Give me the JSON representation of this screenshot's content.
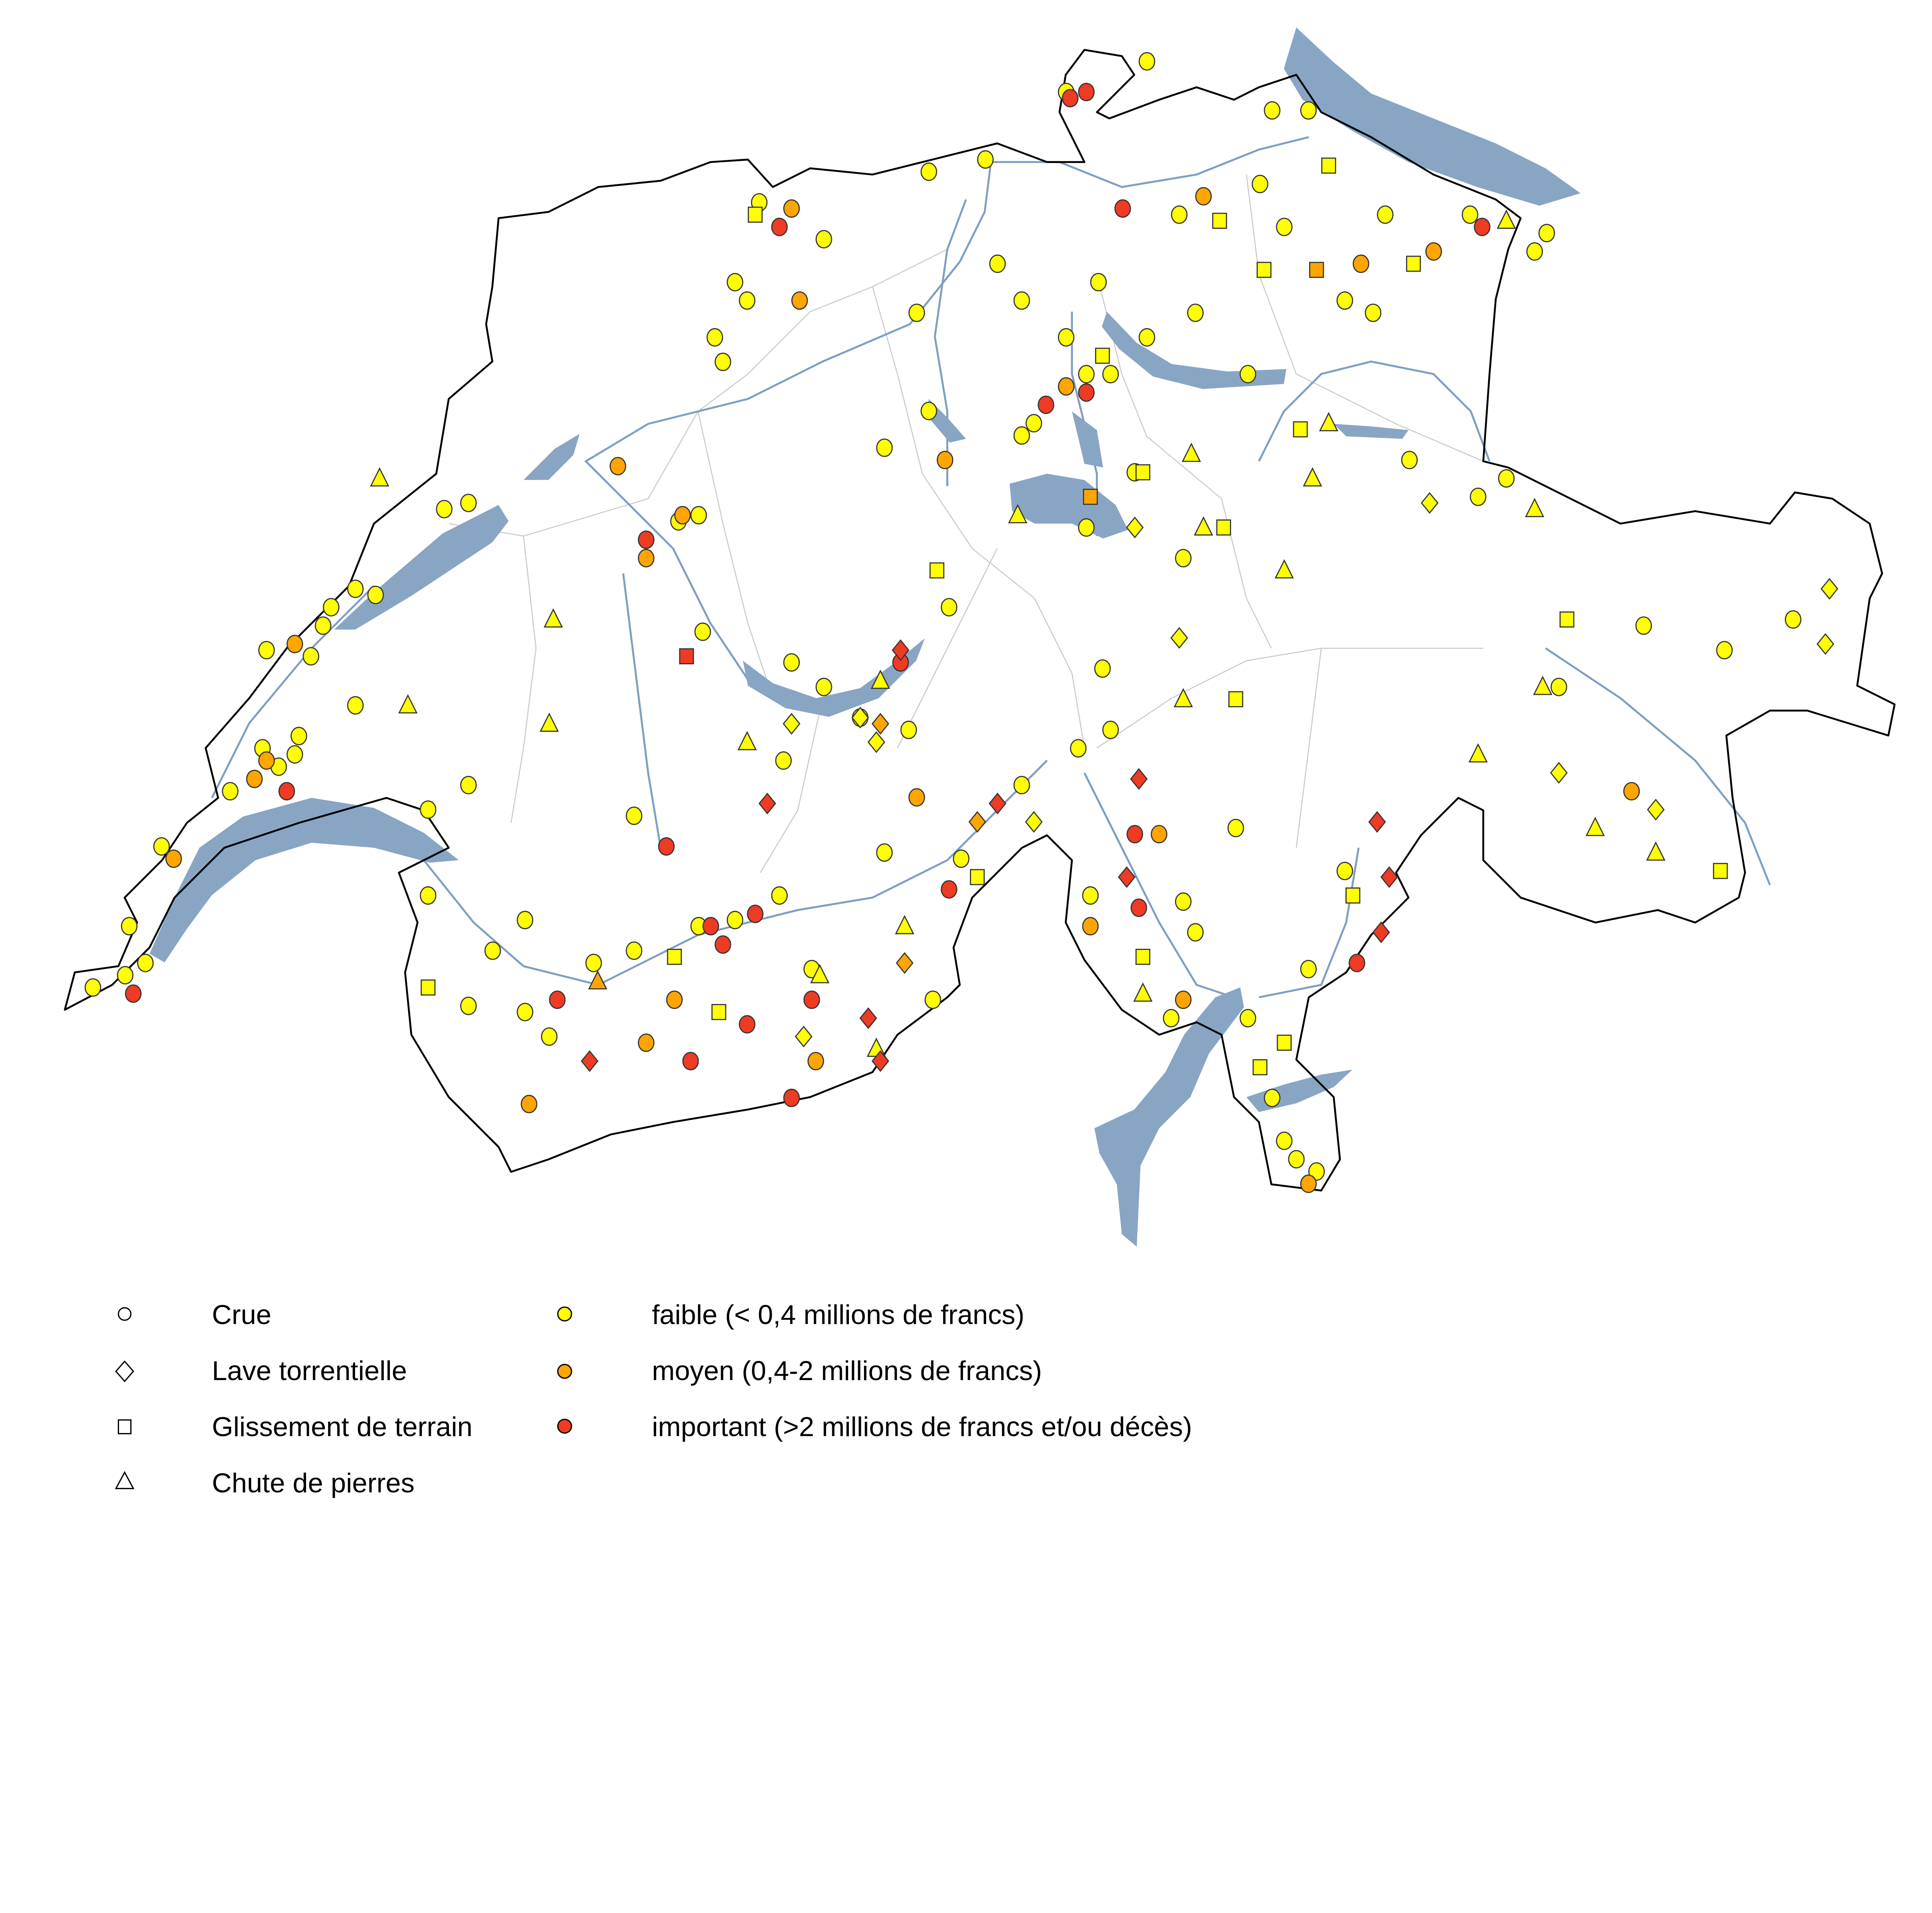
{
  "colors": {
    "faible": "#ffff00",
    "moyen": "#ffa500",
    "important": "#ee3b24",
    "lake": "#88a5c4",
    "river": "#7f9fc2",
    "border": "#000000",
    "canton": "#bbbbbb"
  },
  "legend": {
    "types": [
      {
        "key": "c",
        "icon": "circle-icon",
        "label": "Crue"
      },
      {
        "key": "d",
        "icon": "diamond-icon",
        "label": "Lave torrentielle"
      },
      {
        "key": "s",
        "icon": "square-icon",
        "label": "Glissement de terrain"
      },
      {
        "key": "t",
        "icon": "triangle-icon",
        "label": "Chute de pierres"
      }
    ],
    "severity": [
      {
        "key": "f",
        "label": "faible (< 0,4 millions de francs)"
      },
      {
        "key": "m",
        "label": "moyen (0,4-2  millions de francs)"
      },
      {
        "key": "i",
        "label": "important (>2 millions de francs et/ou décès)"
      }
    ]
  },
  "chart_data": {
    "type": "scatter",
    "coordinate_system": "lon/lat (approx.)",
    "point_fields": [
      "lon",
      "lat",
      "type",
      "severity"
    ],
    "points": [
      [
        6.03,
        46.24,
        "c",
        "f"
      ],
      [
        6.11,
        46.26,
        "c",
        "f"
      ],
      [
        6.16,
        46.28,
        "c",
        "f"
      ],
      [
        6.12,
        46.34,
        "c",
        "f"
      ],
      [
        6.2,
        46.47,
        "c",
        "f"
      ],
      [
        6.37,
        46.56,
        "c",
        "f"
      ],
      [
        6.45,
        46.63,
        "c",
        "f"
      ],
      [
        6.49,
        46.6,
        "c",
        "f"
      ],
      [
        6.54,
        46.65,
        "c",
        "f"
      ],
      [
        6.53,
        46.62,
        "c",
        "f"
      ],
      [
        6.57,
        46.78,
        "c",
        "f"
      ],
      [
        6.6,
        46.83,
        "c",
        "f"
      ],
      [
        6.62,
        46.86,
        "c",
        "f"
      ],
      [
        6.46,
        46.79,
        "c",
        "f"
      ],
      [
        6.73,
        46.88,
        "c",
        "f"
      ],
      [
        6.9,
        47.02,
        "c",
        "f"
      ],
      [
        6.96,
        47.03,
        "c",
        "f"
      ],
      [
        6.86,
        46.53,
        "c",
        "f"
      ],
      [
        6.96,
        46.57,
        "c",
        "f"
      ],
      [
        6.68,
        46.7,
        "c",
        "f"
      ],
      [
        6.86,
        46.39,
        "c",
        "f"
      ],
      [
        6.96,
        46.21,
        "c",
        "f"
      ],
      [
        7.1,
        46.35,
        "c",
        "f"
      ],
      [
        7.16,
        46.16,
        "c",
        "f"
      ],
      [
        7.27,
        46.28,
        "c",
        "f"
      ],
      [
        7.37,
        46.3,
        "c",
        "f"
      ],
      [
        7.53,
        46.34,
        "c",
        "f"
      ],
      [
        7.62,
        46.35,
        "c",
        "f"
      ],
      [
        7.73,
        46.39,
        "c",
        "f"
      ],
      [
        7.81,
        46.27,
        "c",
        "f"
      ],
      [
        7.99,
        46.46,
        "c",
        "f"
      ],
      [
        8.11,
        46.22,
        "c",
        "f"
      ],
      [
        8.18,
        46.45,
        "c",
        "f"
      ],
      [
        8.33,
        46.57,
        "c",
        "f"
      ],
      [
        8.47,
        46.63,
        "c",
        "f"
      ],
      [
        8.55,
        46.66,
        "c",
        "f"
      ],
      [
        8.53,
        46.76,
        "c",
        "f"
      ],
      [
        8.73,
        46.94,
        "c",
        "f"
      ],
      [
        8.61,
        47.08,
        "c",
        "f"
      ],
      [
        8.49,
        46.99,
        "c",
        "f"
      ],
      [
        8.15,
        46.86,
        "c",
        "f"
      ],
      [
        7.76,
        46.77,
        "c",
        "f"
      ],
      [
        7.84,
        46.73,
        "c",
        "f"
      ],
      [
        7.93,
        46.68,
        "c",
        "f"
      ],
      [
        8.05,
        46.66,
        "c",
        "f"
      ],
      [
        7.74,
        46.61,
        "c",
        "f"
      ],
      [
        7.54,
        46.82,
        "c",
        "f"
      ],
      [
        7.53,
        47.01,
        "c",
        "f"
      ],
      [
        7.48,
        47.0,
        "c",
        "f"
      ],
      [
        7.57,
        47.3,
        "c",
        "f"
      ],
      [
        7.59,
        47.26,
        "c",
        "f"
      ],
      [
        7.65,
        47.36,
        "c",
        "f"
      ],
      [
        7.62,
        47.39,
        "c",
        "f"
      ],
      [
        7.68,
        47.52,
        "c",
        "f"
      ],
      [
        7.84,
        47.46,
        "c",
        "f"
      ],
      [
        7.99,
        47.12,
        "c",
        "f"
      ],
      [
        8.07,
        47.34,
        "c",
        "f"
      ],
      [
        8.1,
        47.18,
        "c",
        "f"
      ],
      [
        8.1,
        47.57,
        "c",
        "f"
      ],
      [
        8.24,
        47.59,
        "c",
        "f"
      ],
      [
        8.27,
        47.42,
        "c",
        "f"
      ],
      [
        8.33,
        47.36,
        "c",
        "f"
      ],
      [
        8.36,
        47.16,
        "c",
        "f"
      ],
      [
        8.33,
        47.14,
        "c",
        "f"
      ],
      [
        8.44,
        47.3,
        "c",
        "f"
      ],
      [
        8.49,
        47.24,
        "c",
        "f"
      ],
      [
        8.55,
        47.24,
        "c",
        "f"
      ],
      [
        8.52,
        47.39,
        "c",
        "f"
      ],
      [
        8.64,
        47.3,
        "c",
        "f"
      ],
      [
        8.72,
        47.5,
        "c",
        "f"
      ],
      [
        8.76,
        47.34,
        "c",
        "f"
      ],
      [
        8.89,
        47.24,
        "c",
        "f"
      ],
      [
        8.95,
        47.67,
        "c",
        "f"
      ],
      [
        9.04,
        47.67,
        "c",
        "f"
      ],
      [
        8.92,
        47.55,
        "c",
        "f"
      ],
      [
        8.98,
        47.48,
        "c",
        "f"
      ],
      [
        9.13,
        47.36,
        "c",
        "f"
      ],
      [
        9.2,
        47.34,
        "c",
        "f"
      ],
      [
        9.23,
        47.5,
        "c",
        "f"
      ],
      [
        9.35,
        47.44,
        "c",
        "f"
      ],
      [
        9.6,
        47.44,
        "c",
        "f"
      ],
      [
        9.63,
        47.47,
        "c",
        "f"
      ],
      [
        9.44,
        47.5,
        "c",
        "f"
      ],
      [
        8.64,
        47.75,
        "c",
        "f"
      ],
      [
        8.44,
        47.7,
        "c",
        "f"
      ],
      [
        9.29,
        47.1,
        "c",
        "f"
      ],
      [
        9.46,
        47.04,
        "c",
        "f"
      ],
      [
        9.53,
        47.07,
        "c",
        "f"
      ],
      [
        9.87,
        46.83,
        "c",
        "f"
      ],
      [
        10.07,
        46.79,
        "c",
        "f"
      ],
      [
        10.24,
        46.84,
        "c",
        "f"
      ],
      [
        9.66,
        46.73,
        "c",
        "f"
      ],
      [
        8.86,
        46.5,
        "c",
        "f"
      ],
      [
        8.76,
        46.33,
        "c",
        "f"
      ],
      [
        8.89,
        46.19,
        "c",
        "f"
      ],
      [
        9.04,
        46.27,
        "c",
        "f"
      ],
      [
        9.13,
        46.43,
        "c",
        "f"
      ],
      [
        9.01,
        45.96,
        "c",
        "f"
      ],
      [
        8.98,
        45.99,
        "c",
        "f"
      ],
      [
        9.06,
        45.94,
        "c",
        "f"
      ],
      [
        8.95,
        46.06,
        "c",
        "f"
      ],
      [
        8.5,
        46.39,
        "c",
        "f"
      ],
      [
        8.73,
        46.38,
        "c",
        "f"
      ],
      [
        8.7,
        46.19,
        "c",
        "f"
      ],
      [
        7.37,
        46.52,
        "c",
        "f"
      ],
      [
        6.68,
        46.89,
        "c",
        "f"
      ],
      [
        7.02,
        46.3,
        "c",
        "f"
      ],
      [
        7.1,
        46.2,
        "c",
        "f"
      ],
      [
        6.23,
        46.45,
        "c",
        "m"
      ],
      [
        6.43,
        46.58,
        "c",
        "m"
      ],
      [
        6.46,
        46.61,
        "c",
        "m"
      ],
      [
        6.53,
        46.8,
        "c",
        "m"
      ],
      [
        7.33,
        47.09,
        "c",
        "m"
      ],
      [
        7.4,
        46.94,
        "c",
        "m"
      ],
      [
        7.49,
        47.01,
        "c",
        "m"
      ],
      [
        7.78,
        47.36,
        "c",
        "m"
      ],
      [
        7.76,
        47.51,
        "c",
        "m"
      ],
      [
        8.14,
        47.1,
        "c",
        "m"
      ],
      [
        8.44,
        47.22,
        "c",
        "m"
      ],
      [
        8.78,
        47.53,
        "c",
        "m"
      ],
      [
        9.17,
        47.42,
        "c",
        "m"
      ],
      [
        9.35,
        47.44,
        "c",
        "m"
      ],
      [
        8.07,
        46.55,
        "c",
        "m"
      ],
      [
        7.4,
        46.15,
        "c",
        "m"
      ],
      [
        7.82,
        46.12,
        "c",
        "m"
      ],
      [
        7.47,
        46.22,
        "c",
        "m"
      ],
      [
        7.11,
        46.05,
        "c",
        "m"
      ],
      [
        9.84,
        46.56,
        "c",
        "m"
      ],
      [
        8.67,
        46.49,
        "c",
        "m"
      ],
      [
        8.5,
        46.34,
        "c",
        "m"
      ],
      [
        8.73,
        46.22,
        "c",
        "m"
      ],
      [
        9.04,
        45.92,
        "c",
        "m"
      ],
      [
        6.13,
        46.23,
        "c",
        "i"
      ],
      [
        6.51,
        46.56,
        "c",
        "i"
      ],
      [
        7.4,
        46.97,
        "c",
        "i"
      ],
      [
        7.45,
        46.47,
        "c",
        "i"
      ],
      [
        7.73,
        47.48,
        "c",
        "i"
      ],
      [
        8.45,
        47.69,
        "c",
        "i"
      ],
      [
        8.49,
        47.7,
        "c",
        "i"
      ],
      [
        8.58,
        47.51,
        "c",
        "i"
      ],
      [
        8.39,
        47.19,
        "c",
        "i"
      ],
      [
        8.49,
        47.21,
        "c",
        "i"
      ],
      [
        9.47,
        47.48,
        "c",
        "i"
      ],
      [
        8.03,
        46.77,
        "c",
        "i"
      ],
      [
        7.56,
        46.34,
        "c",
        "i"
      ],
      [
        7.59,
        46.31,
        "c",
        "i"
      ],
      [
        7.65,
        46.18,
        "c",
        "i"
      ],
      [
        7.51,
        46.12,
        "c",
        "i"
      ],
      [
        7.76,
        46.06,
        "c",
        "i"
      ],
      [
        7.81,
        46.22,
        "c",
        "i"
      ],
      [
        8.15,
        46.4,
        "c",
        "i"
      ],
      [
        8.61,
        46.49,
        "c",
        "i"
      ],
      [
        8.62,
        46.37,
        "c",
        "i"
      ],
      [
        9.16,
        46.28,
        "c",
        "i"
      ],
      [
        7.18,
        46.22,
        "c",
        "i"
      ],
      [
        7.67,
        46.36,
        "c",
        "i"
      ],
      [
        7.98,
        46.67,
        "d",
        "m"
      ],
      [
        8.04,
        46.28,
        "d",
        "m"
      ],
      [
        8.22,
        46.51,
        "d",
        "m"
      ],
      [
        8.03,
        46.79,
        "d",
        "i"
      ],
      [
        7.7,
        46.54,
        "d",
        "i"
      ],
      [
        7.26,
        46.12,
        "d",
        "i"
      ],
      [
        7.98,
        46.12,
        "d",
        "i"
      ],
      [
        8.62,
        46.58,
        "d",
        "i"
      ],
      [
        9.21,
        46.51,
        "d",
        "i"
      ],
      [
        9.24,
        46.42,
        "d",
        "i"
      ],
      [
        9.22,
        46.33,
        "d",
        "i"
      ],
      [
        7.95,
        46.19,
        "d",
        "i"
      ],
      [
        8.27,
        46.54,
        "d",
        "i"
      ],
      [
        8.59,
        46.42,
        "d",
        "i"
      ],
      [
        10.33,
        46.89,
        "d",
        "f"
      ],
      [
        10.32,
        46.8,
        "d",
        "f"
      ],
      [
        9.34,
        47.03,
        "d",
        "f"
      ],
      [
        8.72,
        46.81,
        "d",
        "f"
      ],
      [
        9.66,
        46.59,
        "d",
        "f"
      ],
      [
        9.9,
        46.53,
        "d",
        "f"
      ],
      [
        8.36,
        46.51,
        "d",
        "f"
      ],
      [
        7.97,
        46.64,
        "d",
        "f"
      ],
      [
        7.93,
        46.68,
        "d",
        "f"
      ],
      [
        7.79,
        46.16,
        "d",
        "f"
      ],
      [
        7.76,
        46.67,
        "d",
        "f"
      ],
      [
        8.61,
        46.99,
        "d",
        "f"
      ],
      [
        6.86,
        46.24,
        "s",
        "f"
      ],
      [
        7.58,
        46.2,
        "s",
        "f"
      ],
      [
        8.12,
        46.92,
        "s",
        "f"
      ],
      [
        8.63,
        47.08,
        "s",
        "f"
      ],
      [
        8.83,
        46.99,
        "s",
        "f"
      ],
      [
        8.86,
        46.71,
        "s",
        "f"
      ],
      [
        9.68,
        46.84,
        "s",
        "f"
      ],
      [
        10.06,
        46.43,
        "s",
        "f"
      ],
      [
        9.02,
        47.15,
        "s",
        "f"
      ],
      [
        9.09,
        47.58,
        "s",
        "f"
      ],
      [
        8.93,
        47.41,
        "s",
        "f"
      ],
      [
        8.82,
        47.49,
        "s",
        "f"
      ],
      [
        8.98,
        46.15,
        "s",
        "f"
      ],
      [
        8.92,
        46.11,
        "s",
        "f"
      ],
      [
        8.63,
        46.29,
        "s",
        "f"
      ],
      [
        8.22,
        46.42,
        "s",
        "f"
      ],
      [
        7.47,
        46.29,
        "s",
        "f"
      ],
      [
        7.67,
        47.5,
        "s",
        "f"
      ],
      [
        8.53,
        47.27,
        "s",
        "f"
      ],
      [
        9.3,
        47.42,
        "s",
        "f"
      ],
      [
        9.15,
        46.39,
        "s",
        "f"
      ],
      [
        8.5,
        47.04,
        "s",
        "m"
      ],
      [
        9.06,
        47.41,
        "s",
        "m"
      ],
      [
        7.5,
        46.78,
        "s",
        "i"
      ],
      [
        6.74,
        47.07,
        "t",
        "f"
      ],
      [
        7.17,
        46.84,
        "t",
        "f"
      ],
      [
        7.16,
        46.67,
        "t",
        "f"
      ],
      [
        6.81,
        46.7,
        "t",
        "f"
      ],
      [
        7.65,
        46.64,
        "t",
        "f"
      ],
      [
        7.98,
        46.74,
        "t",
        "f"
      ],
      [
        8.32,
        47.01,
        "t",
        "f"
      ],
      [
        8.75,
        47.11,
        "t",
        "f"
      ],
      [
        9.05,
        47.07,
        "t",
        "f"
      ],
      [
        9.09,
        47.16,
        "t",
        "f"
      ],
      [
        8.98,
        46.92,
        "t",
        "f"
      ],
      [
        8.73,
        46.71,
        "t",
        "f"
      ],
      [
        9.46,
        46.62,
        "t",
        "f"
      ],
      [
        9.62,
        46.73,
        "t",
        "f"
      ],
      [
        9.75,
        46.5,
        "t",
        "f"
      ],
      [
        9.9,
        46.46,
        "t",
        "f"
      ],
      [
        9.6,
        47.02,
        "t",
        "f"
      ],
      [
        9.53,
        47.49,
        "t",
        "f"
      ],
      [
        8.04,
        46.34,
        "t",
        "f"
      ],
      [
        8.63,
        46.23,
        "t",
        "f"
      ],
      [
        7.83,
        46.26,
        "t",
        "f"
      ],
      [
        7.97,
        46.14,
        "t",
        "f"
      ],
      [
        8.78,
        46.99,
        "t",
        "f"
      ],
      [
        7.28,
        46.25,
        "t",
        "m"
      ]
    ]
  }
}
